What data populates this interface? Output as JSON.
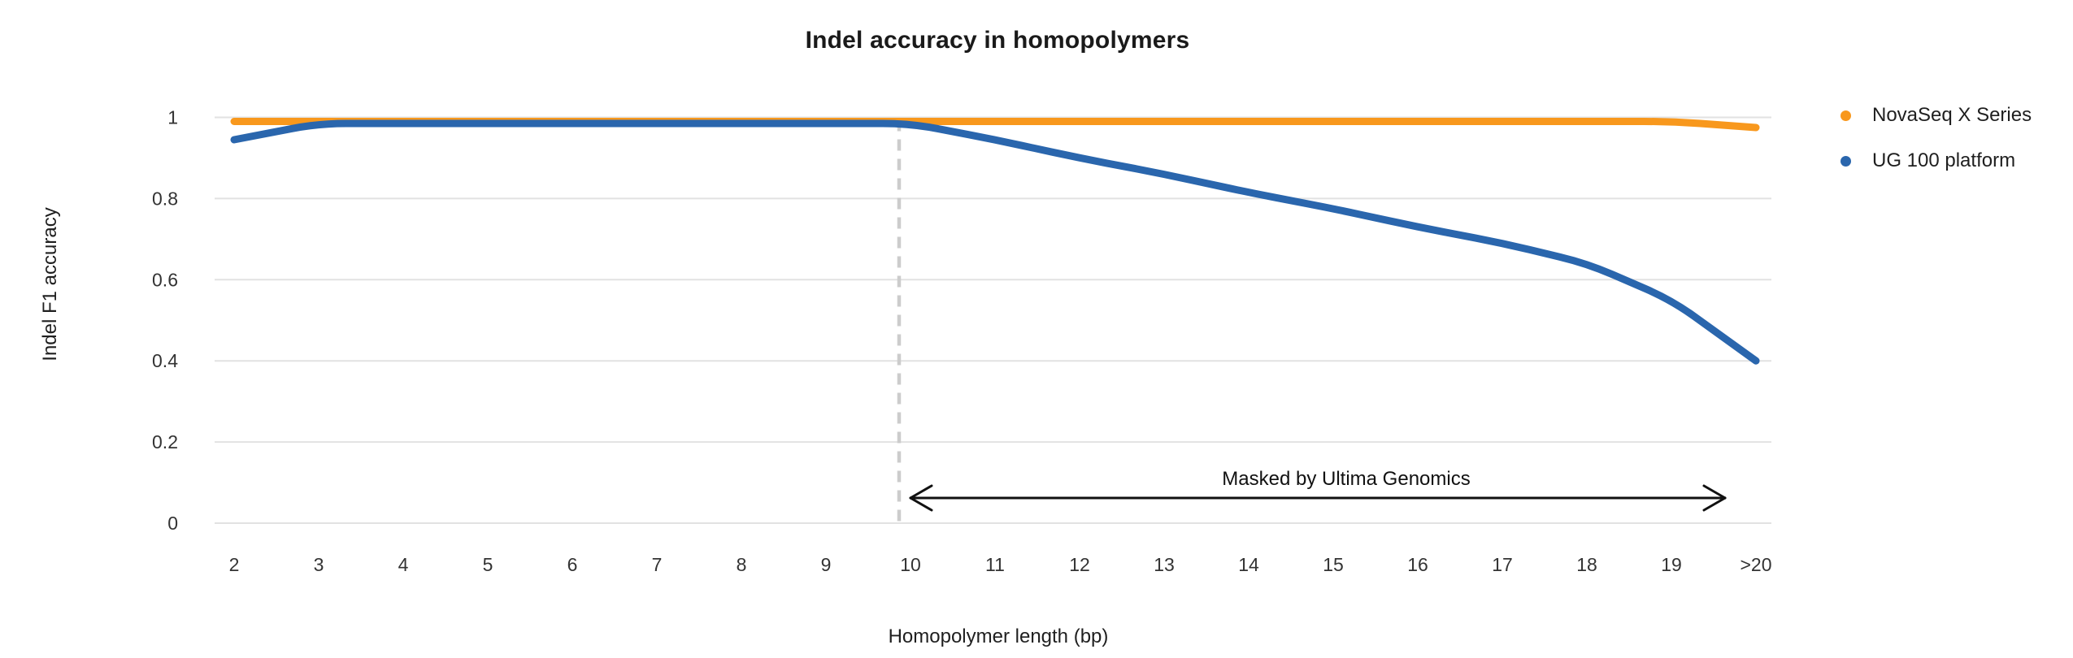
{
  "page": {
    "background": "#ffffff"
  },
  "chart_data": {
    "type": "line",
    "title": "Indel accuracy in homopolymers",
    "xlabel": "Homopolymer length (bp)",
    "ylabel": "Indel F1 accuracy",
    "categories": [
      "2",
      "3",
      "4",
      "5",
      "6",
      "7",
      "8",
      "9",
      "10",
      "11",
      "12",
      "13",
      "14",
      "15",
      "16",
      "17",
      "18",
      "19",
      ">20"
    ],
    "yticks": [
      {
        "value": 0,
        "label": "0"
      },
      {
        "value": 0.2,
        "label": "0.2"
      },
      {
        "value": 0.4,
        "label": "0.4"
      },
      {
        "value": 0.6,
        "label": "0.6"
      },
      {
        "value": 0.8,
        "label": "0.8"
      },
      {
        "value": 1,
        "label": "1"
      }
    ],
    "ylim": [
      0,
      1
    ],
    "grid": "horizontal",
    "legend_position": "right",
    "series": [
      {
        "name": "NovaSeq X Series",
        "color": "#F8981D",
        "values": [
          0.99,
          0.99,
          0.99,
          0.99,
          0.99,
          0.99,
          0.99,
          0.99,
          0.99,
          0.99,
          0.99,
          0.99,
          0.99,
          0.99,
          0.99,
          0.99,
          0.99,
          0.99,
          0.975
        ]
      },
      {
        "name": "UG 100 platform",
        "color": "#2A66AD",
        "values": [
          0.945,
          0.985,
          0.985,
          0.985,
          0.985,
          0.985,
          0.985,
          0.985,
          0.985,
          0.945,
          0.9,
          0.86,
          0.815,
          0.775,
          0.73,
          0.69,
          0.64,
          0.55,
          0.4
        ]
      }
    ],
    "annotations": {
      "masked_label": "Masked by Ultima Genomics",
      "masked_range_start": "10",
      "masked_range_end": ">20",
      "dashed_line_at": "10"
    },
    "colors": {
      "gridline": "#E2E2E2",
      "dashed_divider": "#CCCCCC",
      "arrow": "#111111"
    }
  }
}
